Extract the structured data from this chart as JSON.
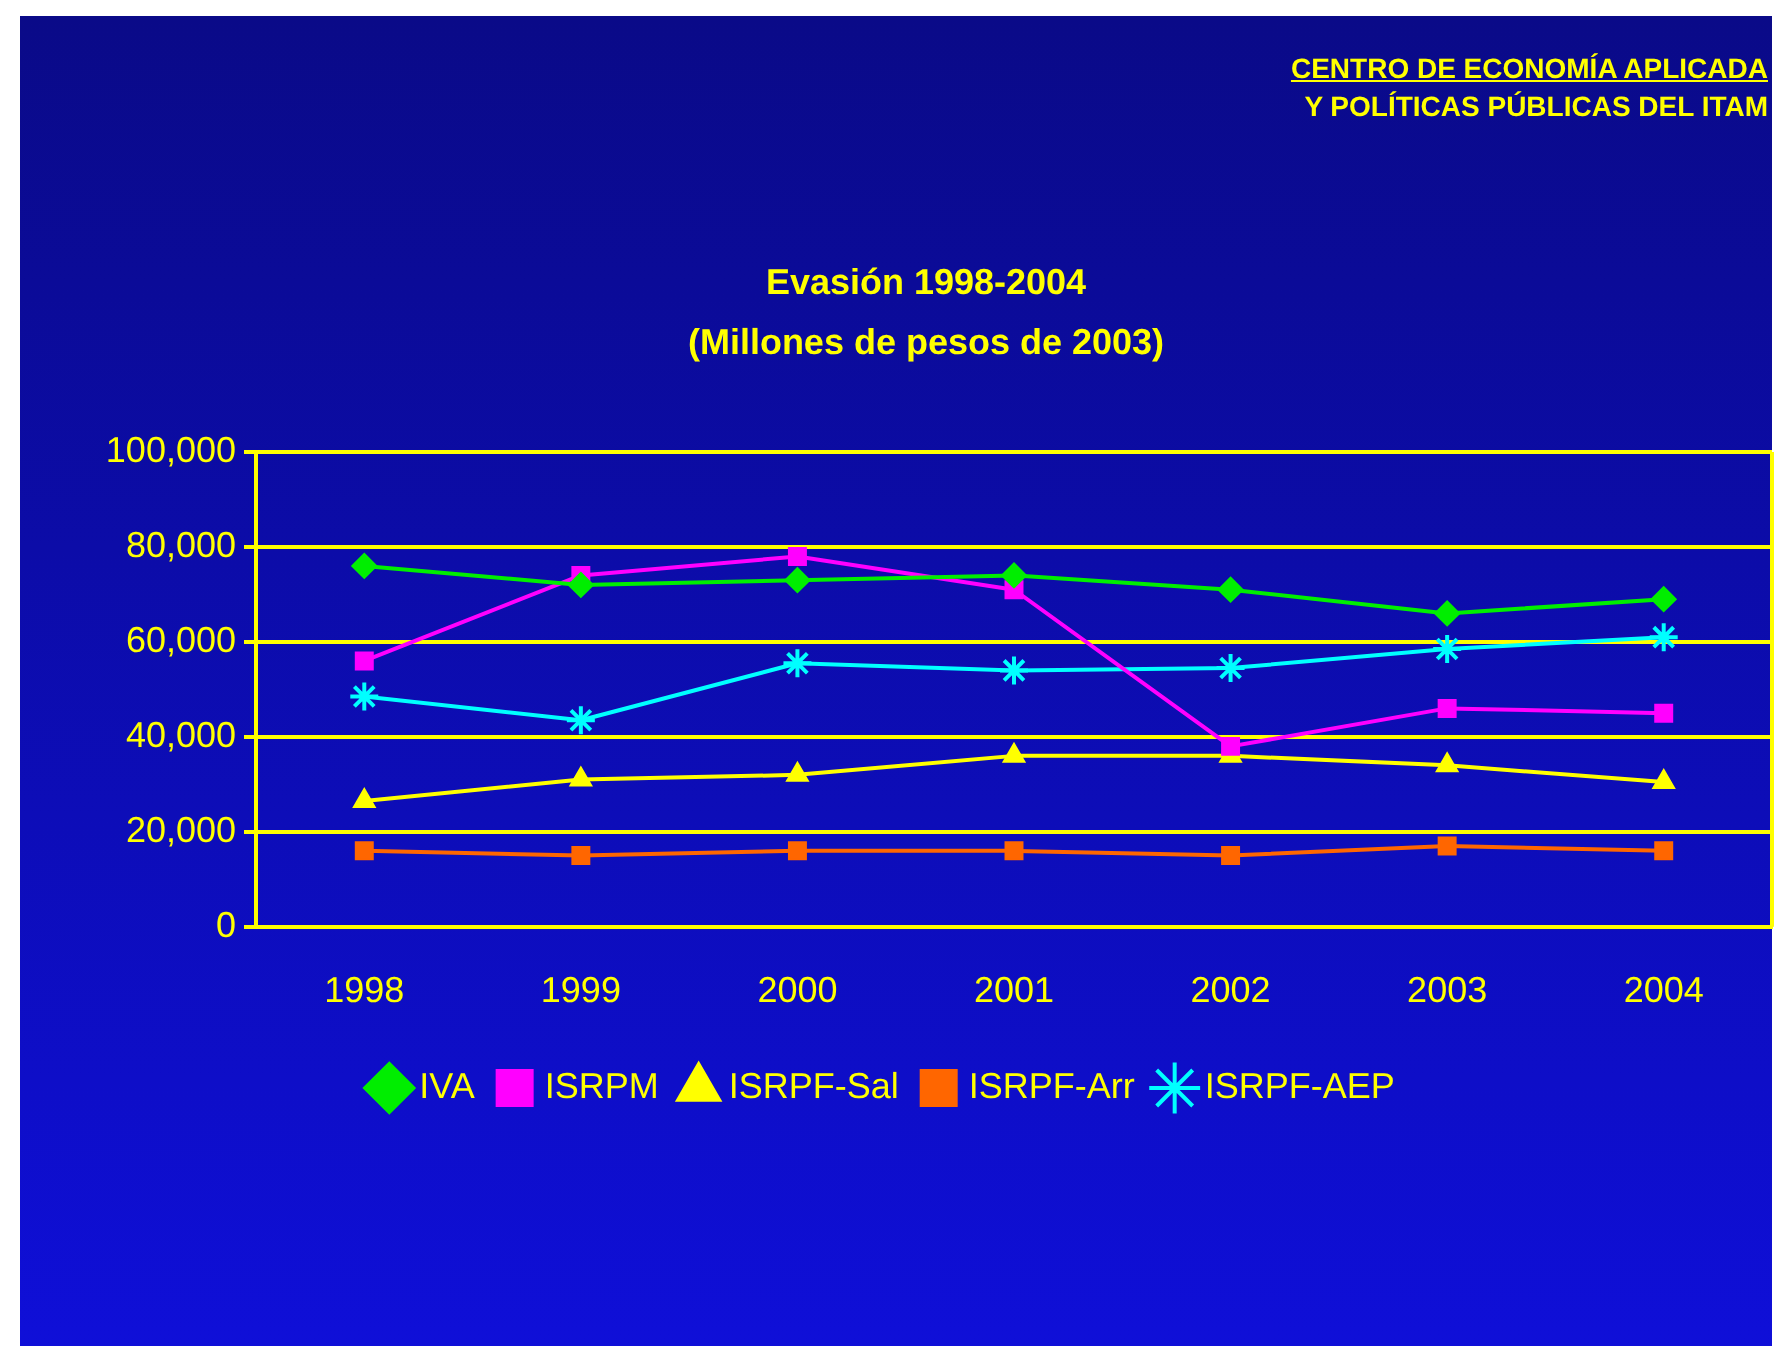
{
  "chart_data": {
    "type": "line",
    "title": "Evasión  1998-2004",
    "subtitle": "(Millones de pesos de 2003)",
    "annotations": [
      "CENTRO DE ECONOMÍA APLICADA",
      "Y POLÍTICAS PÚBLICAS DEL ITAM"
    ],
    "categories": [
      "1998",
      "1999",
      "2000",
      "2001",
      "2002",
      "2003",
      "2004"
    ],
    "series": [
      {
        "name": "IVA",
        "color": "#00ee00",
        "marker": "diamond",
        "values": [
          76000,
          72000,
          73000,
          74000,
          71000,
          66000,
          69000
        ]
      },
      {
        "name": "ISRPM",
        "color": "#ff00ff",
        "marker": "square",
        "values": [
          56000,
          74000,
          78000,
          71000,
          38000,
          46000,
          45000
        ]
      },
      {
        "name": "ISRPF-Sal",
        "color": "#ffff00",
        "marker": "triangle",
        "values": [
          26500,
          31000,
          32000,
          36000,
          36000,
          34000,
          30500
        ]
      },
      {
        "name": "ISRPF-Arr",
        "color": "#ff6600",
        "marker": "square",
        "values": [
          16000,
          15000,
          16000,
          16000,
          15000,
          17000,
          16000
        ]
      },
      {
        "name": "ISRPF-AEP",
        "color": "#00ffff",
        "marker": "cross",
        "values": [
          48500,
          43500,
          55500,
          54000,
          54500,
          58500,
          61000
        ]
      }
    ],
    "ylim": [
      0,
      100000
    ],
    "yticks": [
      0,
      {
        "value": 20000,
        "label": "20,000"
      },
      {
        "value": 40000,
        "label": "40,000"
      },
      {
        "value": 60000,
        "label": "60,000"
      },
      {
        "value": 80000,
        "label": "80,000"
      },
      {
        "value": 100000,
        "label": "100,000"
      }
    ],
    "grid": "y",
    "legend": "bottom",
    "line_style": "solid"
  }
}
